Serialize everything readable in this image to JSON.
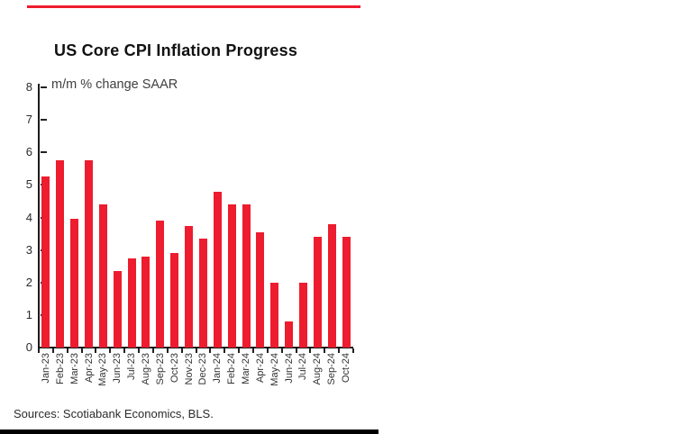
{
  "title": "US Core CPI Inflation Progress",
  "subtitle": "m/m % change SAAR",
  "source_note": "Sources: Scotiabank Economics, BLS.",
  "colors": {
    "bar": "#ED1C2E",
    "accent_line": "#ED1C2E",
    "axis": "#1a1a1a",
    "tick": "#222222",
    "bottom_border": "#000000"
  },
  "chart_data": {
    "type": "bar",
    "title": "US Core CPI Inflation Progress",
    "ylabel": "m/m % change SAAR",
    "xlabel": "",
    "ylim": [
      0,
      8
    ],
    "yticks": [
      0,
      1,
      2,
      3,
      4,
      5,
      6,
      7,
      8
    ],
    "grid": false,
    "legend": false,
    "bar_color": "#ED1C2E",
    "categories": [
      "Jan-23",
      "Feb-23",
      "Mar-23",
      "Apr-23",
      "May-23",
      "Jun-23",
      "Jul-23",
      "Aug-23",
      "Sep-23",
      "Oct-23",
      "Nov-23",
      "Dec-23",
      "Jan-24",
      "Feb-24",
      "Mar-24",
      "Apr-24",
      "May-24",
      "Jun-24",
      "Jul-24",
      "Aug-24",
      "Sep-24",
      "Oct-24"
    ],
    "values": [
      5.25,
      5.75,
      3.95,
      5.75,
      4.4,
      2.35,
      2.75,
      2.8,
      3.9,
      2.9,
      3.75,
      3.35,
      4.8,
      4.4,
      4.4,
      3.55,
      2.0,
      0.8,
      2.0,
      3.4,
      3.8,
      3.4
    ]
  }
}
